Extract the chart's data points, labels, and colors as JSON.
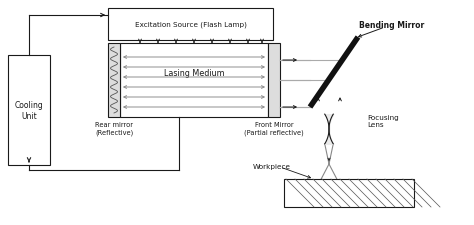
{
  "bg_color": "#ffffff",
  "line_color": "#1a1a1a",
  "gray_beam": "#aaaaaa",
  "mirror_gray": "#bbbbbb",
  "bending_mirror_label": "Bending Mirror",
  "front_mirror_label": "Front Mirror\n(Partial reflective)",
  "rear_mirror_label": "Rear mirror\n(Reflective)",
  "focusing_lens_label": "Focusing\nLens",
  "workpiece_label": "Workpiece",
  "cooling_label": "Cooling\nUnit",
  "excitation_label": "Excitation Source (Flash Lamp)",
  "lasing_label": "Lasing Medium"
}
